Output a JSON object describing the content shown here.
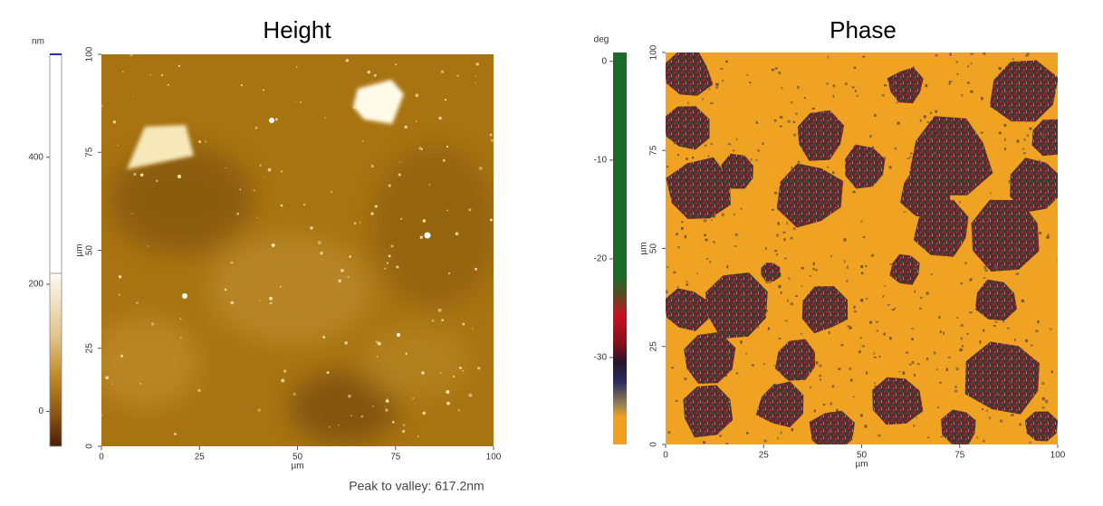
{
  "chart_data": [
    {
      "type": "image",
      "title": "Height",
      "cbar_label": "nm",
      "clim": [
        -55,
        562
      ],
      "cticks": [
        0,
        200,
        400
      ],
      "xlabel": "µm",
      "ylabel": "µm",
      "xlim": [
        0,
        100
      ],
      "ylim": [
        0,
        100
      ],
      "xticks": [
        0,
        25,
        50,
        75,
        100
      ],
      "yticks": [
        0,
        25,
        50,
        75,
        100
      ],
      "note": "Peak to valley: 617.2nm"
    },
    {
      "type": "image",
      "title": "Phase",
      "cbar_label": "deg",
      "clim": [
        -38.8,
        0.9
      ],
      "cticks": [
        0,
        -10,
        -20,
        -30
      ],
      "xlabel": "µm",
      "ylabel": "µm",
      "xlim": [
        0,
        100
      ],
      "ylim": [
        0,
        100
      ],
      "xticks": [
        0,
        25,
        50,
        75,
        100
      ],
      "yticks": [
        0,
        25,
        50,
        75,
        100
      ]
    }
  ]
}
